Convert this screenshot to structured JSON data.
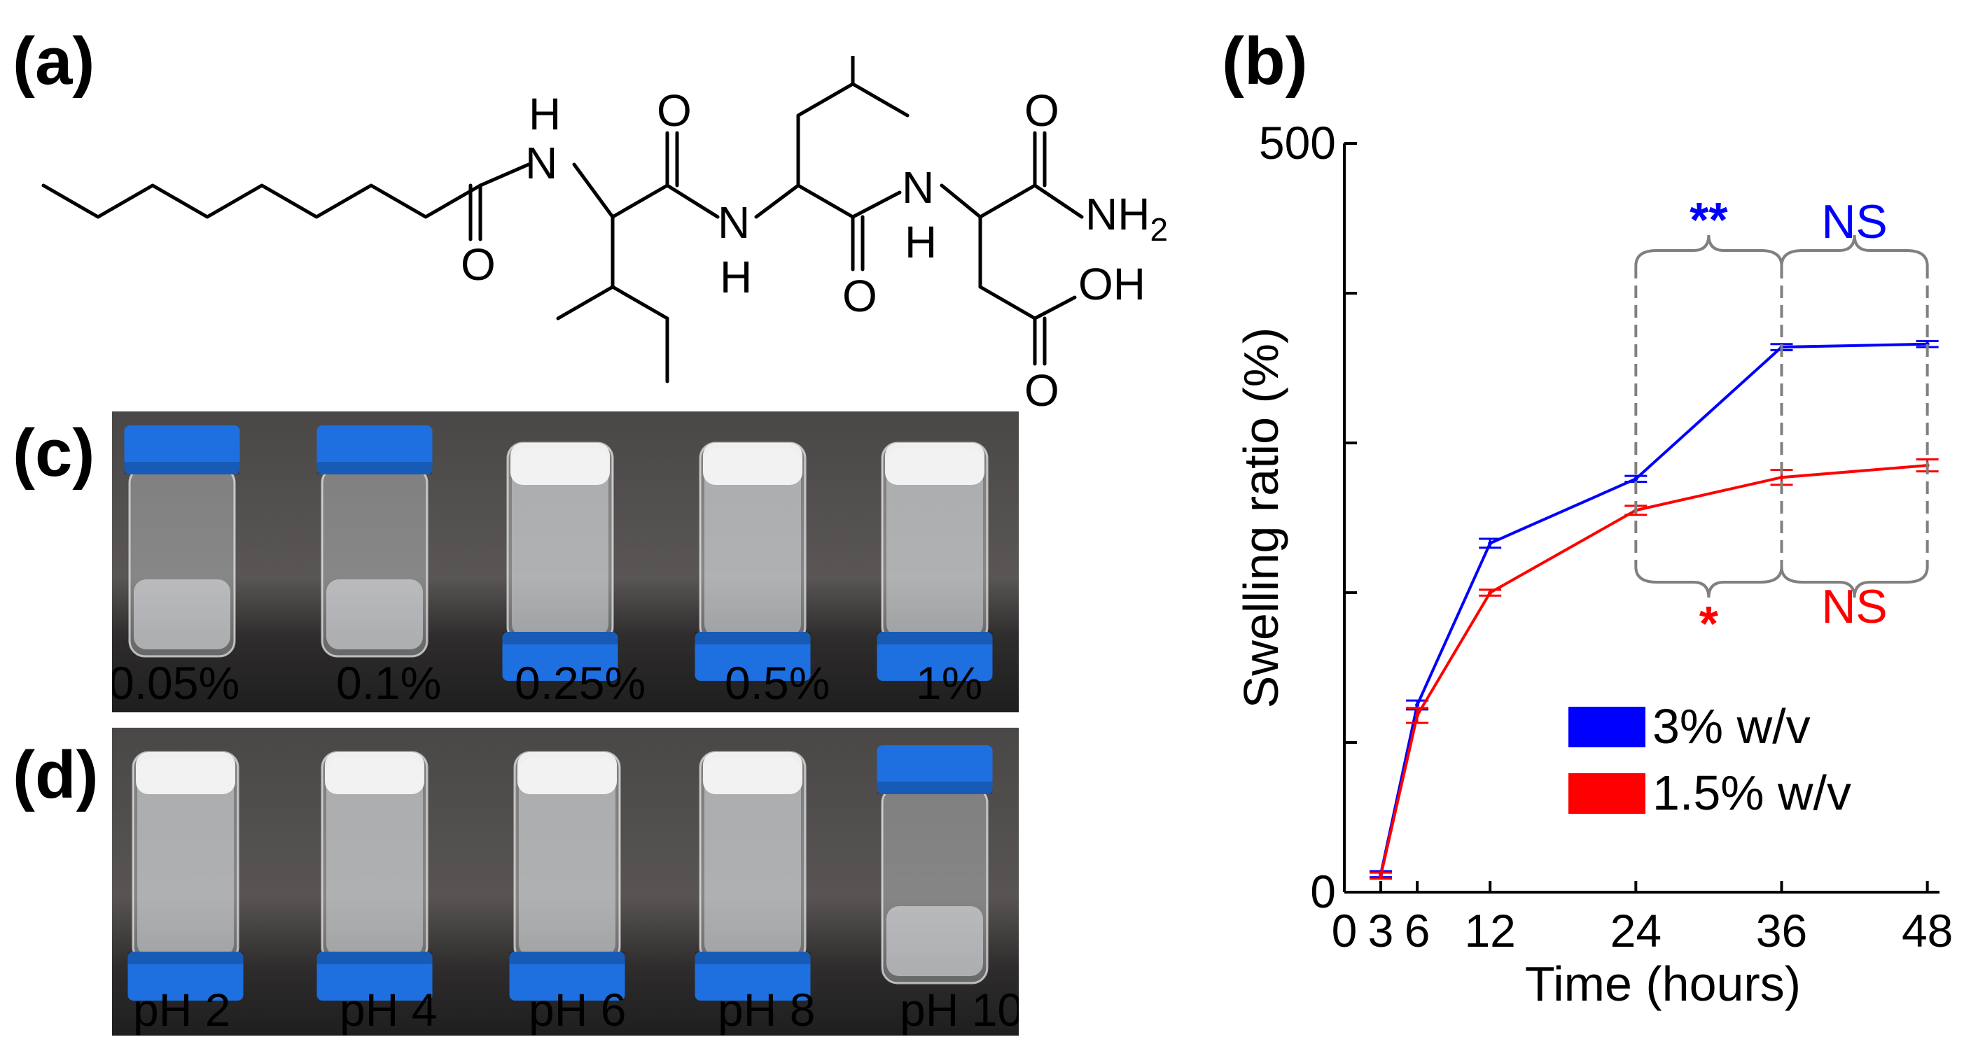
{
  "panels": {
    "a": "(a)",
    "b": "(b)",
    "c": "(c)",
    "d": "(d)"
  },
  "structure": {
    "atoms": {
      "nh1_h": "H",
      "nh1_n": "N",
      "o1": "O",
      "nh2_n": "N",
      "nh2_h": "H",
      "o2": "O",
      "o3": "O",
      "nh3_n": "N",
      "nh3_h": "H",
      "o4": "O",
      "o5": "O",
      "nh2_terminal": "NH",
      "nh2_sub": "2",
      "oh": "OH",
      "o6": "O"
    }
  },
  "photo_c": {
    "labels": [
      "0.05%",
      "0.1%",
      "0.25%",
      "0.5%",
      "1%"
    ]
  },
  "photo_d": {
    "labels": [
      "pH 2",
      "pH 4",
      "pH 6",
      "pH 8",
      "pH 10"
    ]
  },
  "colors": {
    "blue": "#0000ff",
    "red": "#ff0000",
    "gray": "#808080",
    "cap_blue": "#1e6fe0"
  },
  "chart_data": {
    "type": "line",
    "xlabel": "Time (hours)",
    "ylabel": "Swelling ratio (%)",
    "xlim": [
      0,
      49
    ],
    "ylim": [
      0,
      500
    ],
    "xticks": [
      0,
      3,
      6,
      12,
      24,
      36,
      48
    ],
    "xtick_labels": [
      "0",
      "3",
      "6",
      "12",
      "24",
      "36",
      "48"
    ],
    "yticks": [
      0,
      100,
      200,
      300,
      400,
      500
    ],
    "ytick_labels": [
      "0",
      "",
      "",
      "",
      "",
      "500"
    ],
    "series": [
      {
        "name": "3% w/v",
        "color": "#0000ff",
        "x": [
          3,
          6,
          12,
          24,
          36,
          48
        ],
        "y": [
          12,
          125,
          233,
          276,
          364,
          366
        ],
        "err": [
          2,
          3,
          3,
          2,
          2,
          2
        ]
      },
      {
        "name": "1.5% w/v",
        "color": "#ff0000",
        "x": [
          3,
          6,
          12,
          24,
          36,
          48
        ],
        "y": [
          11,
          118,
          200,
          255,
          277,
          285
        ],
        "err": [
          2,
          5,
          2,
          3,
          5,
          4
        ]
      }
    ],
    "annotations": {
      "blue_sig_1": "**",
      "blue_sig_2": "NS",
      "red_sig_1": "*",
      "red_sig_2": "NS"
    },
    "legend_position": "bottom-right",
    "grid": false
  }
}
